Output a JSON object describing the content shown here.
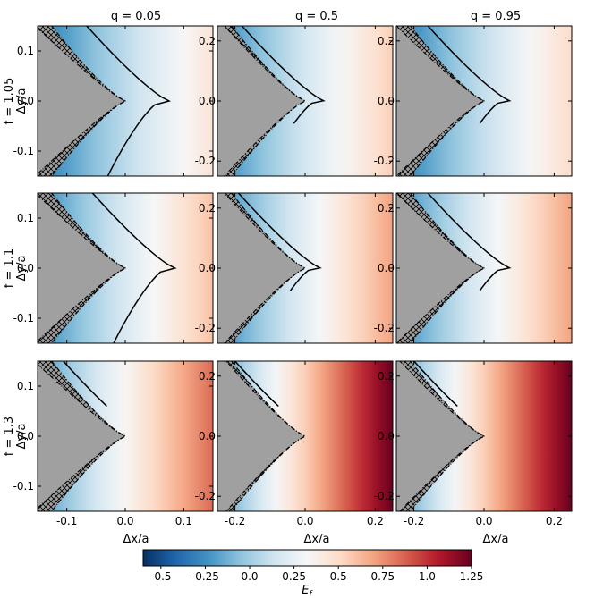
{
  "figure": {
    "column_titles": [
      "q = 0.05",
      "q = 0.5",
      "q = 0.95"
    ],
    "row_labels": [
      "f = 1.05",
      "f = 1.1",
      "f = 1.3"
    ]
  },
  "chart_data": {
    "type": "heatmap",
    "description_free": true,
    "xlabel": "Δx/a",
    "ylabel": "Δy/a",
    "colorbar": {
      "label": "E_f",
      "range": [
        -0.6,
        1.25
      ],
      "ticks": [
        "-0.5",
        "-0.25",
        "0.0",
        "0.25",
        "0.5",
        "0.75",
        "1.0",
        "1.25"
      ],
      "tick_values": [
        -0.5,
        -0.25,
        0.0,
        0.25,
        0.5,
        0.75,
        1.0,
        1.25
      ],
      "colormap": "RdBu_r"
    },
    "colors": {
      "excluded_region": "#a0a0a0",
      "hatch": "#000000",
      "contour": "#000000"
    },
    "panels": [
      {
        "row": 0,
        "col": 0,
        "q": 0.05,
        "f": 1.05,
        "xlim": [
          -0.15,
          0.15
        ],
        "ylim": [
          -0.15,
          0.15
        ],
        "xticks": [
          "-0.1",
          "0.0",
          "0.1"
        ],
        "yticks": [
          "0.1",
          "0.0",
          "-0.1"
        ],
        "emin": -0.35,
        "emax": 0.45,
        "gap": 0.2,
        "hatch_width": 0.028,
        "contour_dx": 0.06
      },
      {
        "row": 0,
        "col": 1,
        "q": 0.5,
        "f": 1.05,
        "xlim": [
          -0.25,
          0.25
        ],
        "ylim": [
          -0.25,
          0.25
        ],
        "xticks": [
          "-0.2",
          "0.0",
          "0.2"
        ],
        "yticks": [
          "0.2",
          "0.0",
          "-0.2"
        ],
        "emin": -0.3,
        "emax": 0.55,
        "gap": 0.22,
        "hatch_width": 0.02,
        "contour_dx": 0.03
      },
      {
        "row": 0,
        "col": 2,
        "q": 0.95,
        "f": 1.05,
        "xlim": [
          -0.25,
          0.25
        ],
        "ylim": [
          -0.25,
          0.25
        ],
        "xticks": [
          "-0.2",
          "0.0",
          "0.2"
        ],
        "yticks": [
          "0.2",
          "0.0",
          "-0.2"
        ],
        "emin": -0.35,
        "emax": 0.5,
        "gap": 0.2,
        "hatch_width": 0.04,
        "contour_dx": 0.05
      },
      {
        "row": 1,
        "col": 0,
        "q": 0.05,
        "f": 1.1,
        "xlim": [
          -0.15,
          0.15
        ],
        "ylim": [
          -0.15,
          0.15
        ],
        "xticks": [
          "-0.1",
          "0.0",
          "0.1"
        ],
        "yticks": [
          "0.1",
          "0.0",
          "-0.1"
        ],
        "emin": -0.3,
        "emax": 0.6,
        "gap": 0.18,
        "hatch_width": 0.028,
        "contour_dx": 0.07
      },
      {
        "row": 1,
        "col": 1,
        "q": 0.5,
        "f": 1.1,
        "xlim": [
          -0.25,
          0.25
        ],
        "ylim": [
          -0.25,
          0.25
        ],
        "xticks": [
          "-0.2",
          "0.0",
          "0.2"
        ],
        "yticks": [
          "0.2",
          "0.0",
          "-0.2"
        ],
        "emin": -0.3,
        "emax": 0.7,
        "gap": 0.2,
        "hatch_width": 0.02,
        "contour_dx": 0.02
      },
      {
        "row": 1,
        "col": 2,
        "q": 0.95,
        "f": 1.1,
        "xlim": [
          -0.25,
          0.25
        ],
        "ylim": [
          -0.25,
          0.25
        ],
        "xticks": [
          "-0.2",
          "0.0",
          "0.2"
        ],
        "yticks": [
          "0.2",
          "0.0",
          "-0.2"
        ],
        "emin": -0.3,
        "emax": 0.7,
        "gap": 0.18,
        "hatch_width": 0.04,
        "contour_dx": 0.05
      },
      {
        "row": 2,
        "col": 0,
        "q": 0.05,
        "f": 1.3,
        "xlim": [
          -0.15,
          0.15
        ],
        "ylim": [
          -0.15,
          0.15
        ],
        "xticks": [
          "-0.1",
          "0.0",
          "0.1"
        ],
        "yticks": [
          "0.1",
          "0.0",
          "-0.1"
        ],
        "emin": -0.25,
        "emax": 0.85,
        "gap": 0.12,
        "hatch_width": 0.03,
        "contour_dx": 0.02
      },
      {
        "row": 2,
        "col": 1,
        "q": 0.5,
        "f": 1.3,
        "xlim": [
          -0.25,
          0.25
        ],
        "ylim": [
          -0.25,
          0.25
        ],
        "xticks": [
          "-0.2",
          "0.0",
          "0.2"
        ],
        "yticks": [
          "0.2",
          "0.0",
          "-0.2"
        ],
        "emin": -0.25,
        "emax": 1.25,
        "gap": 0.12,
        "hatch_width": 0.015,
        "contour_dx": 0.01
      },
      {
        "row": 2,
        "col": 2,
        "q": 0.95,
        "f": 1.3,
        "xlim": [
          -0.25,
          0.25
        ],
        "ylim": [
          -0.25,
          0.25
        ],
        "xticks": [
          "-0.2",
          "0.0",
          "0.2"
        ],
        "yticks": [
          "0.2",
          "0.0",
          "-0.2"
        ],
        "emin": -0.25,
        "emax": 1.25,
        "gap": 0.12,
        "hatch_width": 0.03,
        "contour_dx": 0.01
      }
    ]
  }
}
